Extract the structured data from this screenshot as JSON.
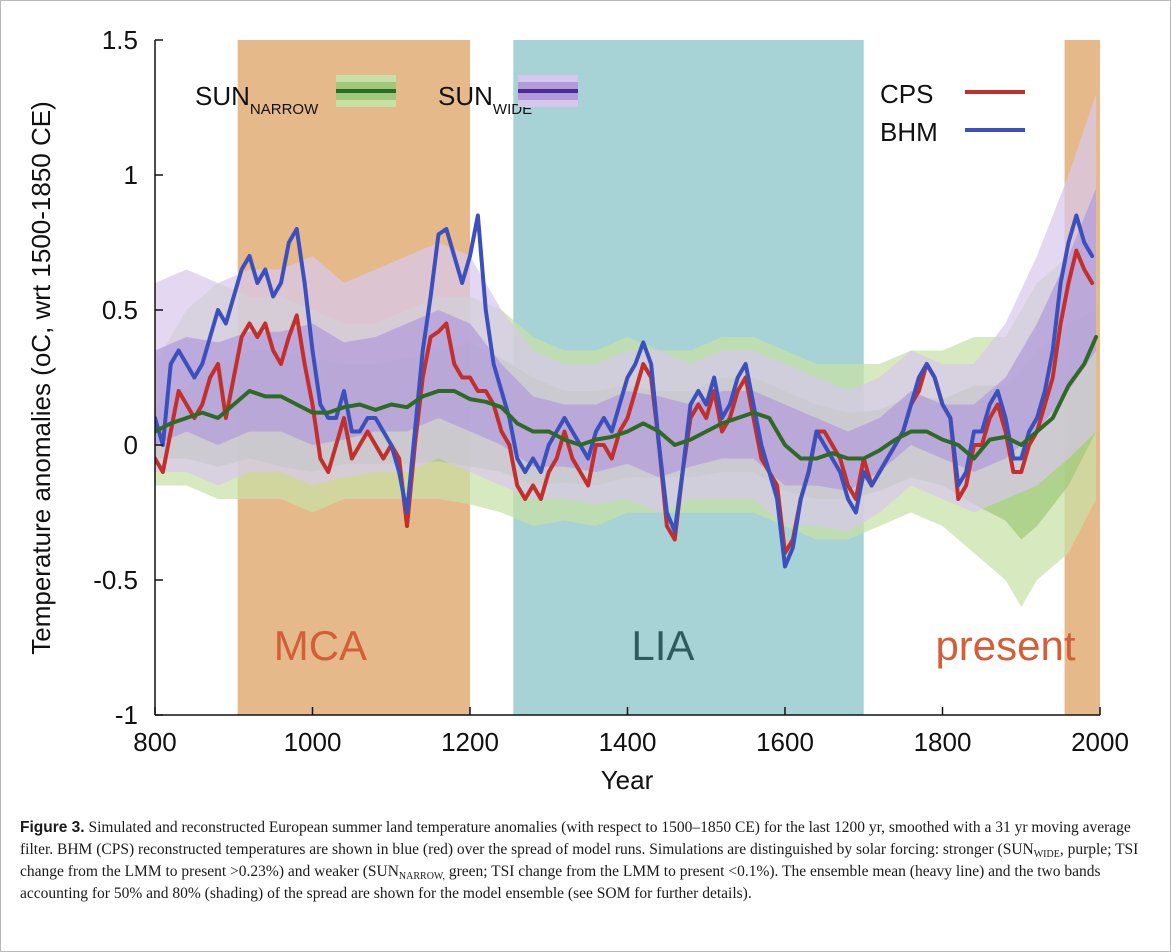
{
  "chart_data": {
    "type": "line",
    "xlabel": "Year",
    "ylabel": "Temperature anomalies (oC, wrt 1500-1850 CE)",
    "xlim": [
      800,
      2000
    ],
    "ylim": [
      -1,
      1.5
    ],
    "xticks": [
      "800",
      "1000",
      "1200",
      "1400",
      "1600",
      "1800",
      "2000"
    ],
    "yticks": [
      "-1",
      "-0.5",
      "0",
      "0.5",
      "1",
      "1.5"
    ],
    "periods": [
      {
        "label": "MCA",
        "start": 905,
        "end": 1200,
        "fill": "#e6b98b",
        "text_color": "#d35e38",
        "label_x": 1010
      },
      {
        "label": "LIA",
        "start": 1255,
        "end": 1700,
        "fill": "#a8d3d6",
        "text_color": "#2f5b5d",
        "label_x": 1445
      },
      {
        "label": "present",
        "start": 1955,
        "end": 2000,
        "fill": "#e6b98b",
        "text_color": "#d35e38",
        "label_x": 1880
      }
    ],
    "legend_placement": "top",
    "legend": [
      {
        "base": "SUN",
        "sub": "NARROW",
        "kind": "band",
        "color": "#2f6a25",
        "band80": "#c7e0a5",
        "band50": "#9fc978"
      },
      {
        "base": "SUN",
        "sub": "WIDE",
        "kind": "band",
        "color": "#4e2a92",
        "band80": "#d8c7ec",
        "band50": "#b19bdb"
      },
      {
        "base": "CPS",
        "sub": "",
        "kind": "line",
        "color": "#c22f2c"
      },
      {
        "base": "BHM",
        "sub": "",
        "kind": "line",
        "color": "#3b4fbd"
      }
    ],
    "series": [
      {
        "name": "CPS",
        "color": "#c22f2c",
        "x": [
          800,
          810,
          820,
          830,
          840,
          850,
          860,
          870,
          880,
          890,
          900,
          910,
          920,
          930,
          940,
          950,
          960,
          970,
          980,
          990,
          1000,
          1010,
          1020,
          1030,
          1040,
          1050,
          1060,
          1070,
          1080,
          1090,
          1100,
          1110,
          1120,
          1130,
          1140,
          1150,
          1160,
          1170,
          1180,
          1190,
          1200,
          1210,
          1220,
          1230,
          1240,
          1250,
          1260,
          1270,
          1280,
          1290,
          1300,
          1310,
          1320,
          1330,
          1340,
          1350,
          1360,
          1370,
          1380,
          1390,
          1400,
          1410,
          1420,
          1430,
          1440,
          1450,
          1460,
          1470,
          1480,
          1490,
          1500,
          1510,
          1520,
          1530,
          1540,
          1550,
          1560,
          1570,
          1580,
          1590,
          1600,
          1610,
          1620,
          1630,
          1640,
          1650,
          1660,
          1670,
          1680,
          1690,
          1700,
          1710,
          1720,
          1730,
          1740,
          1750,
          1760,
          1770,
          1780,
          1790,
          1800,
          1810,
          1820,
          1830,
          1840,
          1850,
          1860,
          1870,
          1880,
          1890,
          1900,
          1910,
          1920,
          1930,
          1940,
          1950,
          1960,
          1970,
          1980,
          1990
        ],
        "y": [
          -0.05,
          -0.1,
          0.05,
          0.2,
          0.15,
          0.1,
          0.15,
          0.25,
          0.3,
          0.1,
          0.25,
          0.4,
          0.45,
          0.4,
          0.45,
          0.35,
          0.3,
          0.4,
          0.48,
          0.3,
          0.15,
          -0.05,
          -0.1,
          0.0,
          0.1,
          -0.05,
          0.0,
          0.05,
          0.0,
          -0.05,
          0.0,
          -0.05,
          -0.3,
          0.0,
          0.25,
          0.4,
          0.42,
          0.45,
          0.3,
          0.25,
          0.25,
          0.2,
          0.2,
          0.15,
          0.05,
          0.0,
          -0.15,
          -0.2,
          -0.15,
          -0.2,
          -0.1,
          -0.05,
          0.05,
          -0.05,
          -0.1,
          -0.15,
          0.0,
          0.0,
          -0.05,
          0.05,
          0.1,
          0.2,
          0.3,
          0.25,
          0.0,
          -0.3,
          -0.35,
          -0.1,
          0.1,
          0.15,
          0.1,
          0.2,
          0.05,
          0.1,
          0.2,
          0.25,
          0.1,
          -0.05,
          -0.1,
          -0.15,
          -0.4,
          -0.35,
          -0.2,
          -0.1,
          0.05,
          0.05,
          0.0,
          -0.05,
          -0.15,
          -0.2,
          -0.05,
          -0.15,
          -0.1,
          -0.05,
          0.0,
          0.05,
          0.15,
          0.2,
          0.3,
          0.25,
          0.15,
          0.1,
          -0.2,
          -0.15,
          0.0,
          0.0,
          0.1,
          0.15,
          0.05,
          -0.1,
          -0.1,
          0.0,
          0.05,
          0.15,
          0.25,
          0.45,
          0.6,
          0.72,
          0.65,
          0.6
        ]
      },
      {
        "name": "BHM",
        "color": "#3b4fbd",
        "x": [
          800,
          810,
          820,
          830,
          840,
          850,
          860,
          870,
          880,
          890,
          900,
          910,
          920,
          930,
          940,
          950,
          960,
          970,
          980,
          990,
          1000,
          1010,
          1020,
          1030,
          1040,
          1050,
          1060,
          1070,
          1080,
          1090,
          1100,
          1110,
          1120,
          1130,
          1140,
          1150,
          1160,
          1170,
          1180,
          1190,
          1200,
          1210,
          1220,
          1230,
          1240,
          1250,
          1260,
          1270,
          1280,
          1290,
          1300,
          1310,
          1320,
          1330,
          1340,
          1350,
          1360,
          1370,
          1380,
          1390,
          1400,
          1410,
          1420,
          1430,
          1440,
          1450,
          1460,
          1470,
          1480,
          1490,
          1500,
          1510,
          1520,
          1530,
          1540,
          1550,
          1560,
          1570,
          1580,
          1590,
          1600,
          1610,
          1620,
          1630,
          1640,
          1650,
          1660,
          1670,
          1680,
          1690,
          1700,
          1710,
          1720,
          1730,
          1740,
          1750,
          1760,
          1770,
          1780,
          1790,
          1800,
          1810,
          1820,
          1830,
          1840,
          1850,
          1860,
          1870,
          1880,
          1890,
          1900,
          1910,
          1920,
          1930,
          1940,
          1950,
          1960,
          1970,
          1980,
          1990
        ],
        "y": [
          0.1,
          0.0,
          0.3,
          0.35,
          0.3,
          0.25,
          0.3,
          0.4,
          0.5,
          0.45,
          0.55,
          0.65,
          0.7,
          0.6,
          0.65,
          0.55,
          0.6,
          0.75,
          0.8,
          0.6,
          0.35,
          0.15,
          0.1,
          0.1,
          0.2,
          0.05,
          0.05,
          0.1,
          0.1,
          0.05,
          0.0,
          -0.1,
          -0.25,
          0.05,
          0.35,
          0.55,
          0.78,
          0.8,
          0.7,
          0.6,
          0.7,
          0.85,
          0.5,
          0.3,
          0.2,
          0.1,
          -0.05,
          -0.1,
          -0.05,
          -0.1,
          0.0,
          0.05,
          0.1,
          0.05,
          0.0,
          -0.05,
          0.05,
          0.1,
          0.05,
          0.15,
          0.25,
          0.3,
          0.38,
          0.3,
          0.0,
          -0.25,
          -0.32,
          -0.1,
          0.15,
          0.2,
          0.15,
          0.25,
          0.1,
          0.15,
          0.25,
          0.3,
          0.15,
          0.0,
          -0.1,
          -0.2,
          -0.45,
          -0.38,
          -0.2,
          -0.1,
          0.05,
          0.0,
          -0.05,
          -0.1,
          -0.2,
          -0.25,
          -0.1,
          -0.15,
          -0.1,
          -0.05,
          0.0,
          0.05,
          0.15,
          0.25,
          0.3,
          0.25,
          0.15,
          0.1,
          -0.15,
          -0.1,
          0.05,
          0.05,
          0.15,
          0.2,
          0.1,
          -0.05,
          -0.05,
          0.05,
          0.1,
          0.2,
          0.35,
          0.6,
          0.75,
          0.85,
          0.75,
          0.7
        ]
      },
      {
        "name": "Ensemble mean",
        "color": "#2f6a25",
        "x": [
          800,
          820,
          840,
          860,
          880,
          900,
          920,
          940,
          960,
          980,
          1000,
          1020,
          1040,
          1060,
          1080,
          1100,
          1120,
          1140,
          1160,
          1180,
          1200,
          1220,
          1240,
          1260,
          1280,
          1300,
          1320,
          1340,
          1360,
          1380,
          1400,
          1420,
          1440,
          1460,
          1480,
          1500,
          1520,
          1540,
          1560,
          1580,
          1600,
          1620,
          1640,
          1660,
          1680,
          1700,
          1720,
          1740,
          1760,
          1780,
          1800,
          1820,
          1840,
          1860,
          1880,
          1900,
          1920,
          1940,
          1960,
          1980,
          1995
        ],
        "y": [
          0.05,
          0.08,
          0.1,
          0.12,
          0.1,
          0.15,
          0.2,
          0.18,
          0.18,
          0.15,
          0.12,
          0.12,
          0.14,
          0.15,
          0.13,
          0.15,
          0.14,
          0.18,
          0.2,
          0.2,
          0.17,
          0.16,
          0.14,
          0.08,
          0.05,
          0.05,
          0.02,
          0.0,
          0.02,
          0.03,
          0.05,
          0.08,
          0.05,
          0.0,
          0.02,
          0.05,
          0.08,
          0.1,
          0.12,
          0.1,
          0.0,
          -0.05,
          -0.05,
          -0.03,
          -0.05,
          -0.05,
          -0.02,
          0.02,
          0.05,
          0.05,
          0.02,
          0.0,
          -0.05,
          0.02,
          0.03,
          0.0,
          0.05,
          0.1,
          0.22,
          0.3,
          0.4
        ]
      }
    ],
    "bands": [
      {
        "name": "SUN_NARROW 80%",
        "color": "#c7e0a5",
        "x": [
          800,
          840,
          880,
          920,
          960,
          1000,
          1040,
          1080,
          1120,
          1160,
          1200,
          1240,
          1280,
          1320,
          1360,
          1400,
          1440,
          1480,
          1520,
          1560,
          1600,
          1640,
          1680,
          1720,
          1760,
          1800,
          1840,
          1880,
          1900,
          1920,
          1960,
          1995
        ],
        "lower": [
          -0.15,
          -0.15,
          -0.2,
          -0.2,
          -0.2,
          -0.25,
          -0.2,
          -0.2,
          -0.2,
          -0.2,
          -0.22,
          -0.25,
          -0.3,
          -0.28,
          -0.3,
          -0.25,
          -0.25,
          -0.25,
          -0.25,
          -0.25,
          -0.3,
          -0.35,
          -0.35,
          -0.3,
          -0.25,
          -0.3,
          -0.4,
          -0.5,
          -0.6,
          -0.5,
          -0.4,
          -0.2
        ],
        "upper": [
          0.3,
          0.5,
          0.6,
          0.55,
          0.55,
          0.5,
          0.45,
          0.45,
          0.5,
          0.55,
          0.55,
          0.5,
          0.4,
          0.35,
          0.35,
          0.4,
          0.35,
          0.35,
          0.4,
          0.4,
          0.35,
          0.3,
          0.3,
          0.3,
          0.35,
          0.35,
          0.4,
          0.4,
          0.5,
          0.6,
          0.7,
          0.75
        ]
      },
      {
        "name": "SUN_NARROW 50%",
        "color": "#9fc978",
        "x": [
          800,
          840,
          880,
          920,
          960,
          1000,
          1040,
          1080,
          1120,
          1160,
          1200,
          1240,
          1280,
          1320,
          1360,
          1400,
          1440,
          1480,
          1520,
          1560,
          1600,
          1640,
          1680,
          1720,
          1760,
          1800,
          1840,
          1880,
          1900,
          1920,
          1960,
          1995
        ],
        "lower": [
          -0.05,
          -0.05,
          -0.08,
          -0.05,
          -0.08,
          -0.1,
          -0.07,
          -0.07,
          -0.07,
          -0.06,
          -0.08,
          -0.1,
          -0.15,
          -0.14,
          -0.15,
          -0.12,
          -0.12,
          -0.12,
          -0.1,
          -0.1,
          -0.17,
          -0.2,
          -0.2,
          -0.17,
          -0.12,
          -0.15,
          -0.22,
          -0.28,
          -0.35,
          -0.3,
          -0.15,
          0.05
        ],
        "upper": [
          0.15,
          0.22,
          0.3,
          0.35,
          0.35,
          0.32,
          0.3,
          0.3,
          0.32,
          0.35,
          0.38,
          0.32,
          0.25,
          0.2,
          0.2,
          0.22,
          0.2,
          0.2,
          0.25,
          0.25,
          0.2,
          0.15,
          0.12,
          0.13,
          0.18,
          0.17,
          0.22,
          0.22,
          0.28,
          0.35,
          0.45,
          0.5
        ]
      },
      {
        "name": "SUN_WIDE 80%",
        "color": "#d8c7ec",
        "x": [
          800,
          840,
          880,
          920,
          960,
          1000,
          1040,
          1080,
          1120,
          1160,
          1200,
          1240,
          1280,
          1320,
          1360,
          1400,
          1440,
          1480,
          1520,
          1560,
          1600,
          1640,
          1680,
          1720,
          1760,
          1800,
          1840,
          1880,
          1920,
          1960,
          1995
        ],
        "lower": [
          -0.1,
          -0.1,
          -0.15,
          -0.1,
          -0.1,
          -0.15,
          -0.12,
          -0.1,
          -0.1,
          -0.05,
          -0.1,
          -0.15,
          -0.2,
          -0.2,
          -0.22,
          -0.2,
          -0.25,
          -0.2,
          -0.2,
          -0.2,
          -0.3,
          -0.3,
          -0.32,
          -0.25,
          -0.15,
          -0.2,
          -0.25,
          -0.2,
          -0.15,
          -0.05,
          0.05
        ],
        "upper": [
          0.6,
          0.65,
          0.6,
          0.65,
          0.65,
          0.7,
          0.6,
          0.65,
          0.7,
          0.75,
          0.7,
          0.5,
          0.35,
          0.3,
          0.3,
          0.35,
          0.35,
          0.3,
          0.35,
          0.35,
          0.3,
          0.25,
          0.2,
          0.25,
          0.35,
          0.3,
          0.3,
          0.45,
          0.7,
          1.0,
          1.3
        ]
      },
      {
        "name": "SUN_WIDE 50%",
        "color": "#b19bdb",
        "x": [
          800,
          840,
          880,
          920,
          960,
          1000,
          1040,
          1080,
          1120,
          1160,
          1200,
          1240,
          1280,
          1320,
          1360,
          1400,
          1440,
          1480,
          1520,
          1560,
          1600,
          1640,
          1680,
          1720,
          1760,
          1800,
          1840,
          1880,
          1920,
          1960,
          1995
        ],
        "lower": [
          0.0,
          0.05,
          0.0,
          0.05,
          0.05,
          0.0,
          0.02,
          0.05,
          0.05,
          0.1,
          0.05,
          0.0,
          -0.08,
          -0.08,
          -0.1,
          -0.07,
          -0.12,
          -0.08,
          -0.05,
          -0.05,
          -0.15,
          -0.15,
          -0.17,
          -0.1,
          0.0,
          -0.05,
          -0.1,
          -0.05,
          0.05,
          0.2,
          0.35
        ],
        "upper": [
          0.35,
          0.4,
          0.38,
          0.42,
          0.42,
          0.45,
          0.38,
          0.4,
          0.45,
          0.5,
          0.45,
          0.3,
          0.18,
          0.15,
          0.15,
          0.2,
          0.18,
          0.15,
          0.2,
          0.2,
          0.15,
          0.1,
          0.05,
          0.1,
          0.2,
          0.15,
          0.15,
          0.25,
          0.45,
          0.7,
          0.95
        ]
      }
    ]
  },
  "caption": {
    "label": "Figure 3.",
    "seg1": " Simulated and reconstructed European summer land temperature anomalies (with respect to 1500–1850 CE) for the last 1200 yr, smoothed with a 31 yr moving average filter. BHM (CPS) reconstructed temperatures are shown in blue (red) over the spread of model runs. Simulations are distinguished by solar forcing: stronger (SUN",
    "sub1": "WIDE",
    "seg2": ", purple; TSI change from the LMM to present >0.23%) and weaker (SUN",
    "sub2": "NARROW,",
    "seg3": " green; TSI change from the LMM to present <0.1%). The ensemble mean (heavy line) and the two bands accounting for 50% and 80% (shading) of the spread are shown for the model ensemble (see SOM for further details)."
  }
}
